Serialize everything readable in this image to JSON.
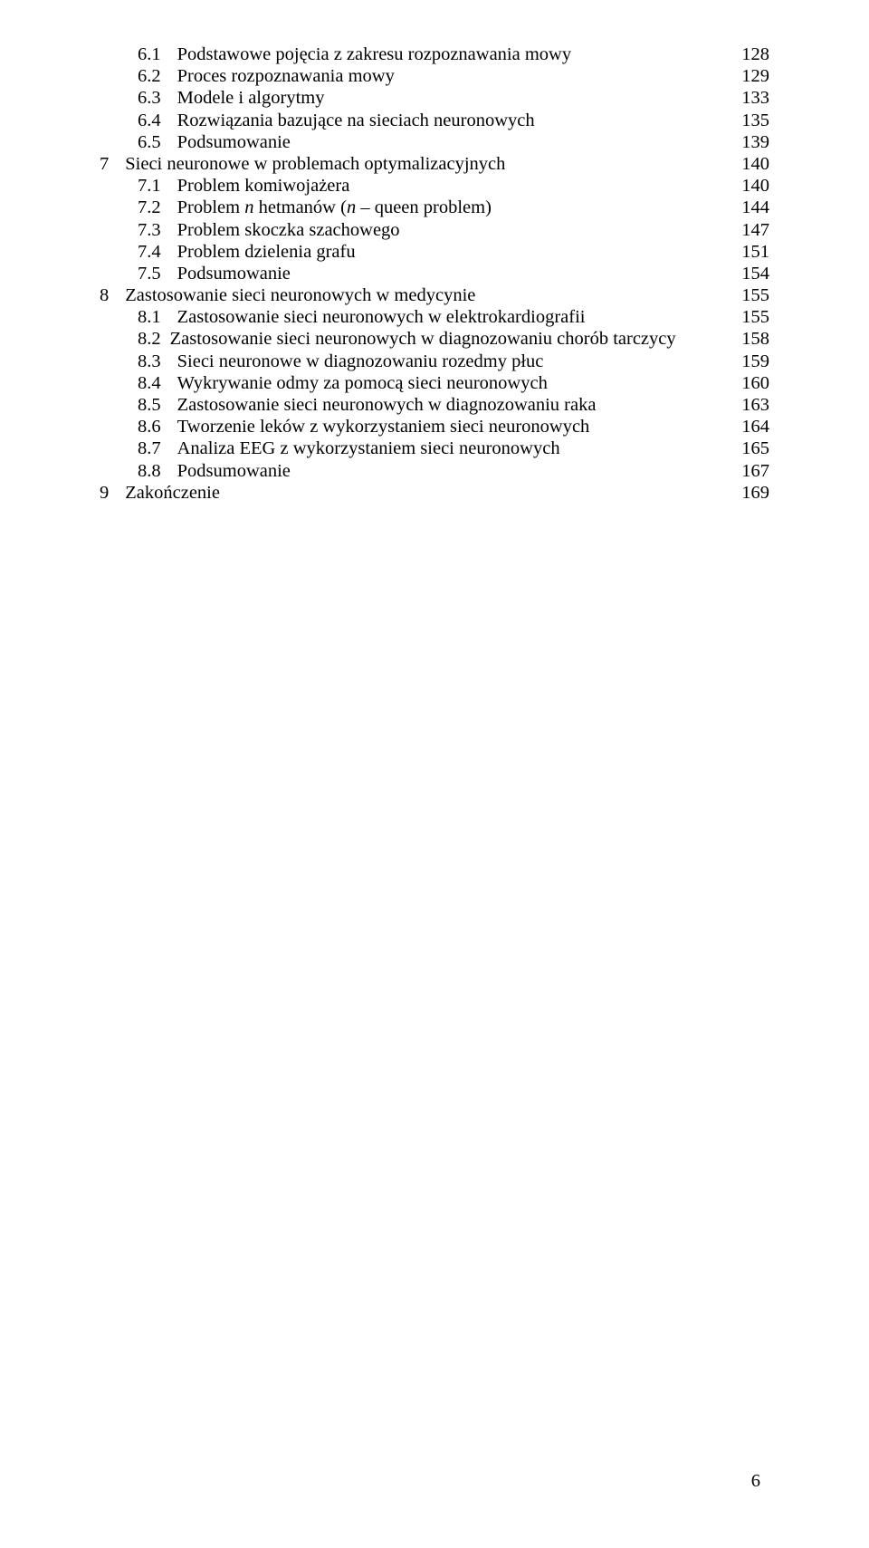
{
  "toc": [
    {
      "level": 2,
      "num": "6.1",
      "title_plain": "Podstawowe pojęcia z zakresu rozpoznawania mowy",
      "page": "128"
    },
    {
      "level": 2,
      "num": "6.2",
      "title_plain": "Proces rozpoznawania mowy",
      "page": "129"
    },
    {
      "level": 2,
      "num": "6.3",
      "title_plain": "Modele i algorytmy",
      "page": "133"
    },
    {
      "level": 2,
      "num": "6.4",
      "title_plain": "Rozwiązania bazujące na sieciach neuronowych",
      "page": "135"
    },
    {
      "level": 2,
      "num": "6.5",
      "title_plain": "Podsumowanie",
      "page": "139"
    },
    {
      "level": 1,
      "num": "7",
      "title_plain": "Sieci neuronowe w problemach optymalizacyjnych",
      "page": "140"
    },
    {
      "level": 2,
      "num": "7.1",
      "title_plain": "Problem komiwojażera",
      "page": "140"
    },
    {
      "level": 2,
      "num": "7.2",
      "title_prefix": "Problem ",
      "title_italic": "n",
      "title_mid": " hetmanów (",
      "title_italic2": "n",
      "title_suffix": " – queen problem)",
      "page": "144"
    },
    {
      "level": 2,
      "num": "7.3",
      "title_plain": "Problem skoczka szachowego",
      "page": "147"
    },
    {
      "level": 2,
      "num": "7.4",
      "title_plain": "Problem dzielenia grafu",
      "page": "151"
    },
    {
      "level": 2,
      "num": "7.5",
      "title_plain": "Podsumowanie",
      "page": "154"
    },
    {
      "level": 1,
      "num": "8",
      "title_plain": "Zastosowanie sieci neuronowych w medycynie",
      "page": "155"
    },
    {
      "level": 2,
      "num": "8.1",
      "title_plain": "Zastosowanie sieci neuronowych w elektrokardiografii",
      "page": "155"
    },
    {
      "level": 2,
      "num": "8.2",
      "title_plain": "Zastosowanie sieci neuronowych w diagnozowaniu chorób tarczycy",
      "page": "158",
      "tight": true
    },
    {
      "level": 2,
      "num": "8.3",
      "title_plain": "Sieci neuronowe w diagnozowaniu rozedmy płuc",
      "page": "159"
    },
    {
      "level": 2,
      "num": "8.4",
      "title_plain": "Wykrywanie odmy za pomocą sieci neuronowych",
      "page": "160"
    },
    {
      "level": 2,
      "num": "8.5",
      "title_plain": "Zastosowanie sieci neuronowych w diagnozowaniu raka",
      "page": "163"
    },
    {
      "level": 2,
      "num": "8.6",
      "title_plain": "Tworzenie leków z wykorzystaniem sieci neuronowych",
      "page": "164"
    },
    {
      "level": 2,
      "num": "8.7",
      "title_plain": "Analiza EEG z wykorzystaniem sieci neuronowych",
      "page": "165"
    },
    {
      "level": 2,
      "num": "8.8",
      "title_plain": "Podsumowanie",
      "page": "167"
    },
    {
      "level": 1,
      "num": "9",
      "title_plain": "Zakończenie",
      "page": "169"
    }
  ],
  "page_number": "6",
  "colors": {
    "background": "#ffffff",
    "text": "#000000"
  },
  "typography": {
    "font_family": "Times New Roman",
    "font_size_pt": 15,
    "line_height": 1.18
  }
}
